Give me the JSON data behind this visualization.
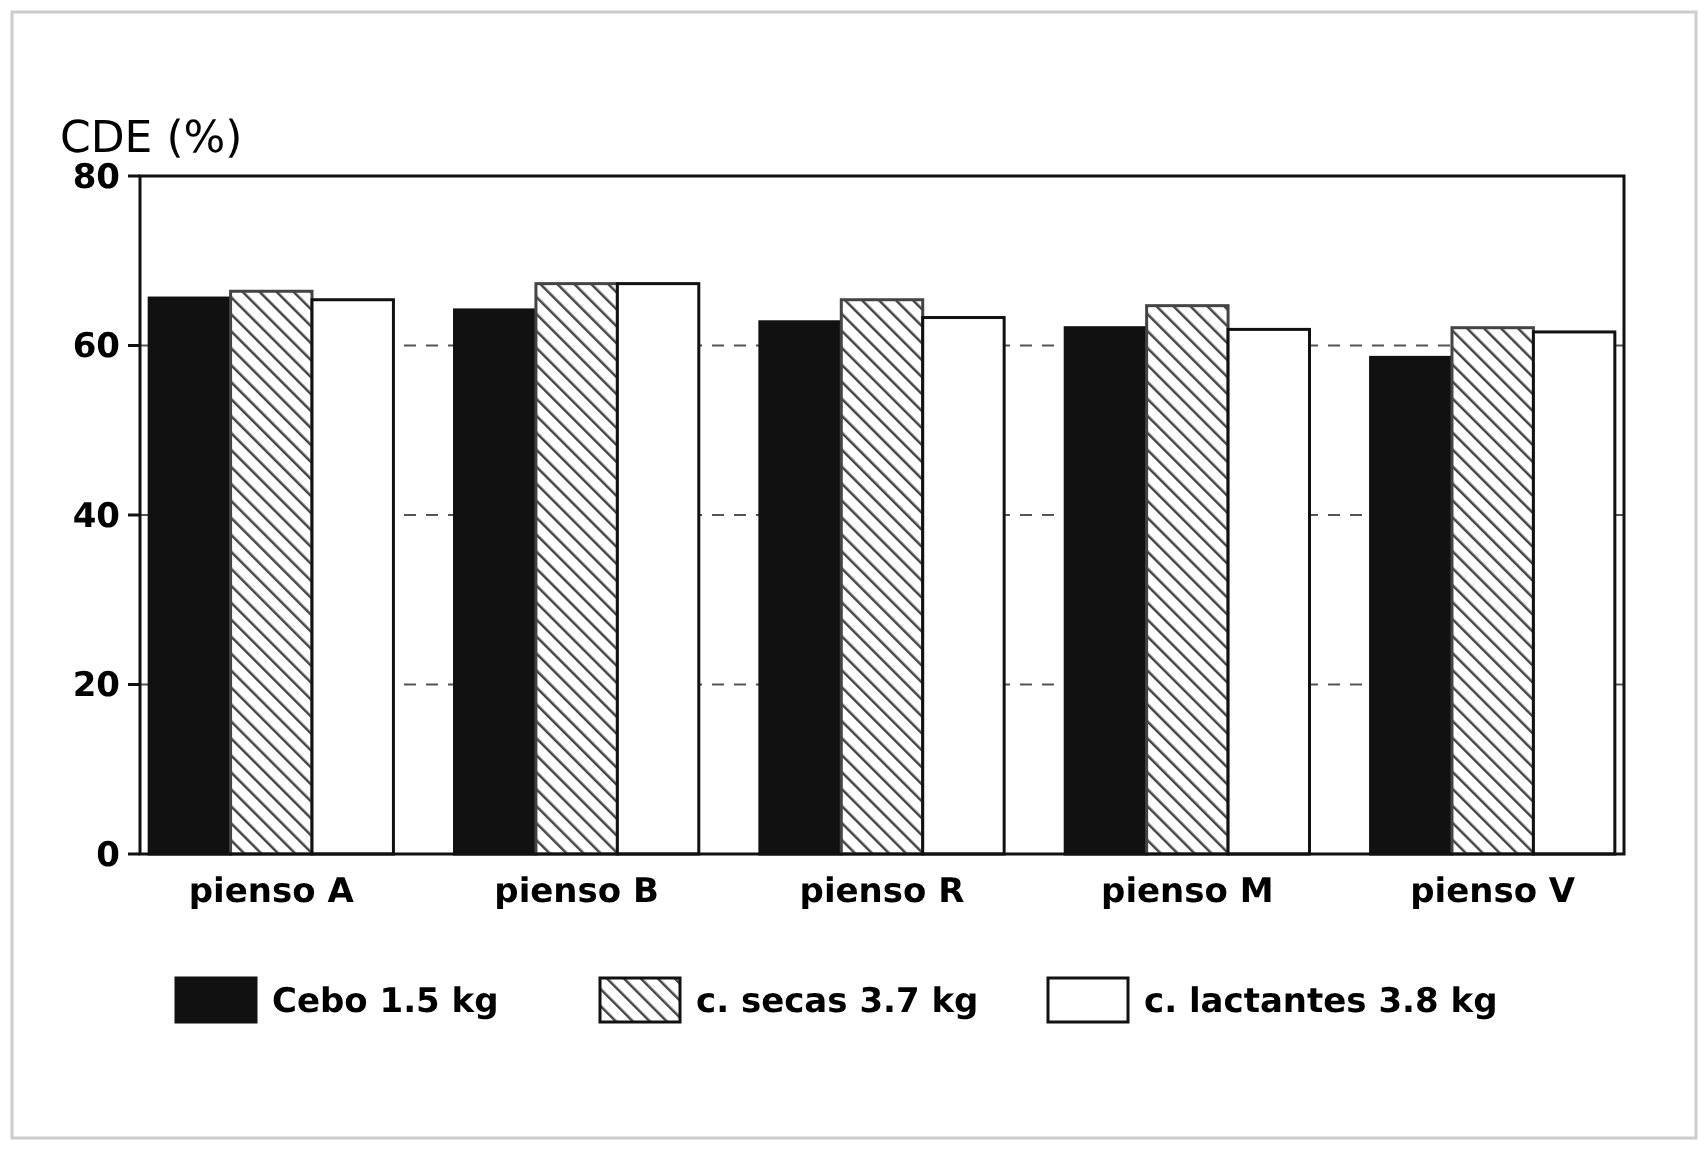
{
  "chart_data": {
    "type": "bar",
    "ylabel": "CDE (%)",
    "categories": [
      "pienso A",
      "pienso B",
      "pienso R",
      "pienso M",
      "pienso V"
    ],
    "series": [
      {
        "name": "Cebo 1.5 kg",
        "color": "#111111",
        "values": [
          65.6,
          64.2,
          62.8,
          62.1,
          58.6
        ]
      },
      {
        "name": "c. secas 3.7 kg",
        "color": "#444444",
        "values": [
          66.4,
          67.3,
          65.4,
          64.7,
          62.1
        ]
      },
      {
        "name": "c. lactantes 3.8 kg",
        "color": "#ffffff",
        "values": [
          65.4,
          67.3,
          63.3,
          61.9,
          61.6
        ]
      }
    ],
    "ylim": [
      0,
      80
    ],
    "yticks": [
      0,
      20,
      40,
      60,
      80
    ],
    "grid": "y",
    "legend": "bottom"
  }
}
